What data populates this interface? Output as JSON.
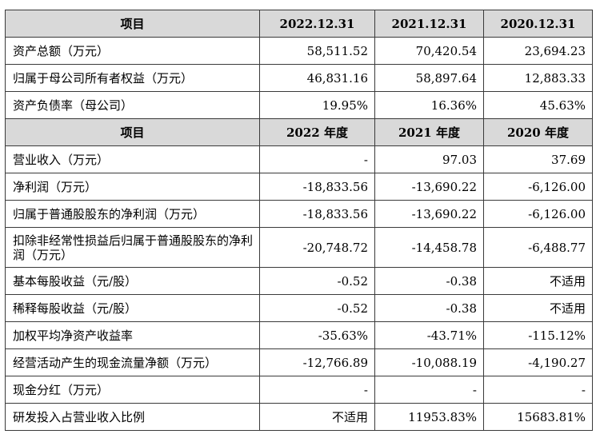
{
  "header1": {
    "item": "项目",
    "col1": "2022.12.31",
    "col2": "2021.12.31",
    "col3": "2020.12.31"
  },
  "balance_rows": [
    {
      "label": "资产总额（万元）",
      "v1": "58,511.52",
      "v2": "70,420.54",
      "v3": "23,694.23"
    },
    {
      "label": "归属于母公司所有者权益（万元）",
      "v1": "46,831.16",
      "v2": "58,897.64",
      "v3": "12,883.33"
    },
    {
      "label": "资产负债率（母公司）",
      "v1": "19.95%",
      "v2": "16.36%",
      "v3": "45.63%"
    }
  ],
  "header2": {
    "item": "项目",
    "col1": "2022 年度",
    "col2": "2021 年度",
    "col3": "2020 年度"
  },
  "income_rows": [
    {
      "label": "营业收入（万元）",
      "v1": "-",
      "v2": "97.03",
      "v3": "37.69"
    },
    {
      "label": "净利润（万元）",
      "v1": "-18,833.56",
      "v2": "-13,690.22",
      "v3": "-6,126.00"
    },
    {
      "label": "归属于普通股股东的净利润（万元）",
      "v1": "-18,833.56",
      "v2": "-13,690.22",
      "v3": "-6,126.00"
    },
    {
      "label": "扣除非经常性损益后归属于普通股股东的净利润（万元）",
      "v1": "-20,748.72",
      "v2": "-14,458.78",
      "v3": "-6,488.77"
    },
    {
      "label": "基本每股收益（元/股）",
      "v1": "-0.52",
      "v2": "-0.38",
      "v3": "不适用"
    },
    {
      "label": "稀释每股收益（元/股）",
      "v1": "-0.52",
      "v2": "-0.38",
      "v3": "不适用"
    },
    {
      "label": "加权平均净资产收益率",
      "v1": "-35.63%",
      "v2": "-43.71%",
      "v3": "-115.12%"
    },
    {
      "label": "经营活动产生的现金流量净额（万元）",
      "v1": "-12,766.89",
      "v2": "-10,088.19",
      "v3": "-4,190.27"
    },
    {
      "label": "现金分红（万元）",
      "v1": "-",
      "v2": "-",
      "v3": "-"
    },
    {
      "label": "研发投入占营业收入比例",
      "v1": "不适用",
      "v2": "11953.83%",
      "v3": "15683.81%"
    }
  ]
}
